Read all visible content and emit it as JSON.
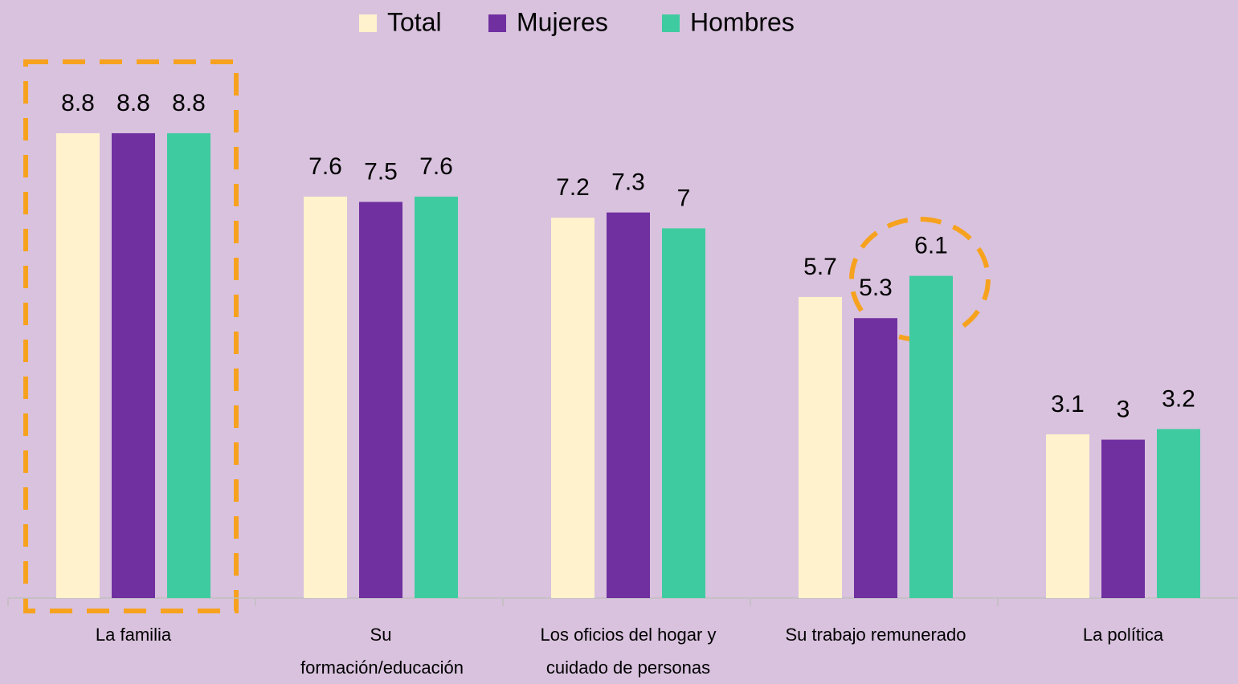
{
  "chart_data": {
    "type": "bar",
    "categories": [
      "La familia",
      "Su formación/educación",
      "Los oficios del hogar y cuidado de personas",
      "Su trabajo remunerado",
      "La política"
    ],
    "series": [
      {
        "name": "Total",
        "color": "#fff2cc",
        "values": [
          8.8,
          7.6,
          7.2,
          5.7,
          3.1
        ]
      },
      {
        "name": "Mujeres",
        "color": "#7030a0",
        "values": [
          8.8,
          7.5,
          7.3,
          5.3,
          3
        ]
      },
      {
        "name": "Hombres",
        "color": "#3fcba0",
        "values": [
          8.8,
          7.6,
          7,
          6.1,
          3.2
        ]
      }
    ],
    "legend": "top"
  }
}
